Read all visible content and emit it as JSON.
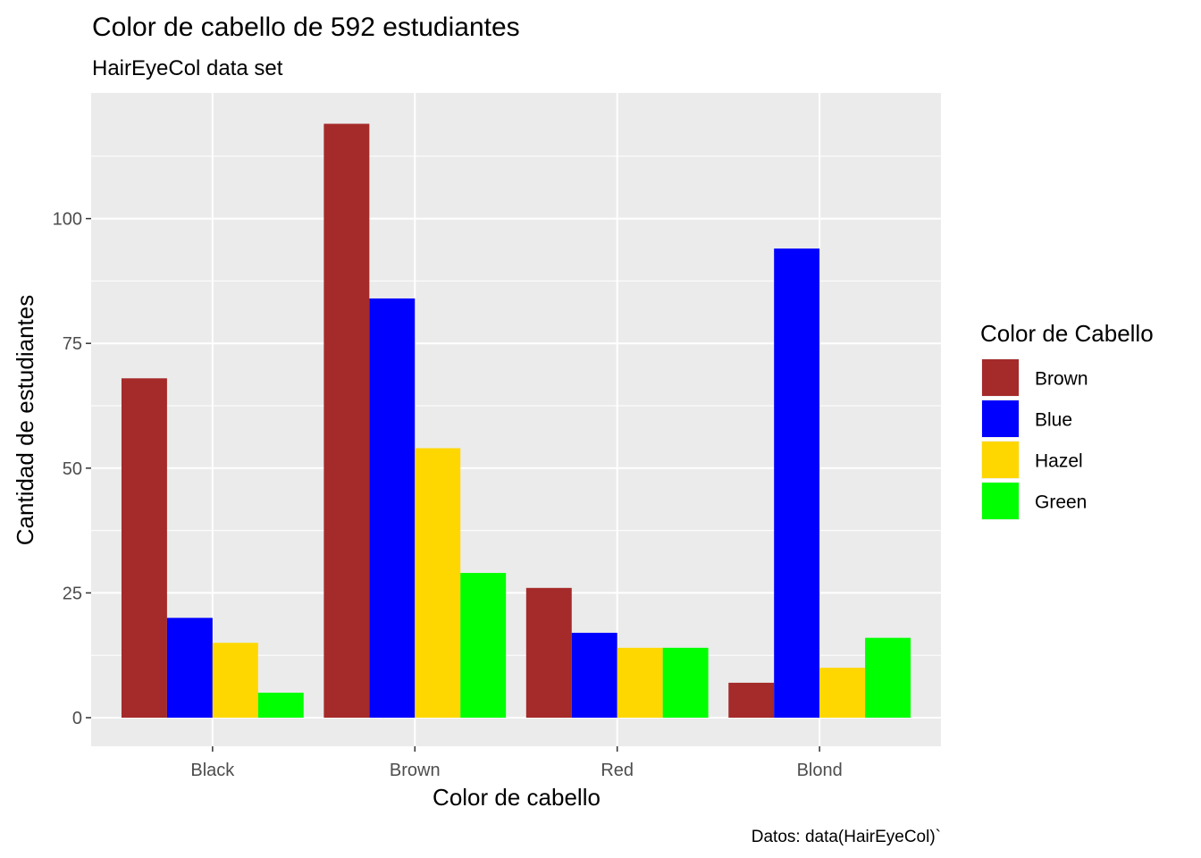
{
  "chart_data": {
    "type": "bar",
    "title": "Color de cabello de 592 estudiantes",
    "subtitle": "HairEyeCol data set",
    "xlabel": "Color de cabello",
    "ylabel": "Cantidad de estudiantes",
    "caption": "Datos: data(HairEyeCol)`",
    "categories": [
      "Black",
      "Brown",
      "Red",
      "Blond"
    ],
    "ylim": [
      0,
      125
    ],
    "yticks": [
      0,
      25,
      50,
      75,
      100
    ],
    "grid": true,
    "legend": {
      "title": "Color de Cabello",
      "position": "right"
    },
    "series": [
      {
        "name": "Brown",
        "color": "#A52A2A",
        "values": [
          68,
          119,
          26,
          7
        ]
      },
      {
        "name": "Blue",
        "color": "#0000FF",
        "values": [
          20,
          84,
          17,
          94
        ]
      },
      {
        "name": "Hazel",
        "color": "#FFD700",
        "values": [
          15,
          54,
          14,
          10
        ]
      },
      {
        "name": "Green",
        "color": "#00FF00",
        "values": [
          5,
          29,
          14,
          16
        ]
      }
    ],
    "panel_background": "#EBEBEB",
    "grid_color": "#FFFFFF"
  }
}
